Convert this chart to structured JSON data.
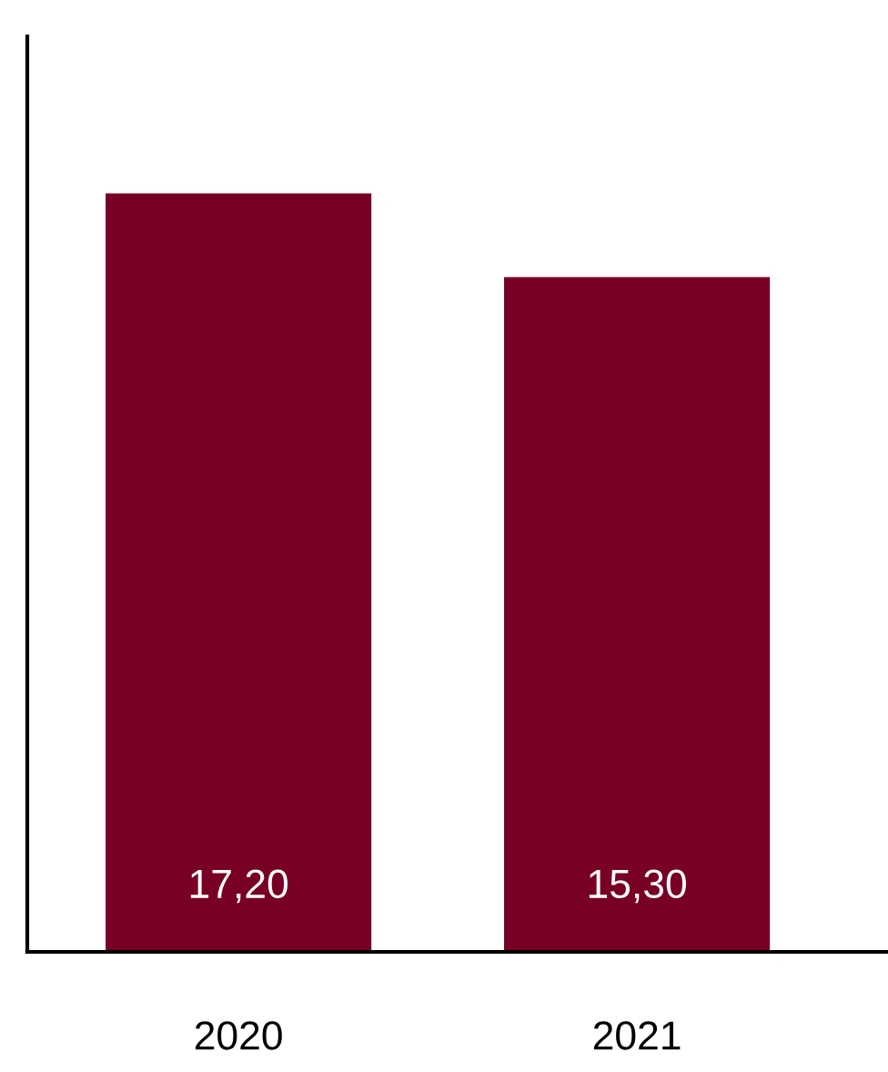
{
  "chart_data": {
    "type": "bar",
    "categories": [
      "2020",
      "2021"
    ],
    "values": [
      17.2,
      15.3
    ],
    "value_labels": [
      "17,20",
      "15,30"
    ],
    "color": "#780024",
    "grid": false,
    "legend": false
  }
}
